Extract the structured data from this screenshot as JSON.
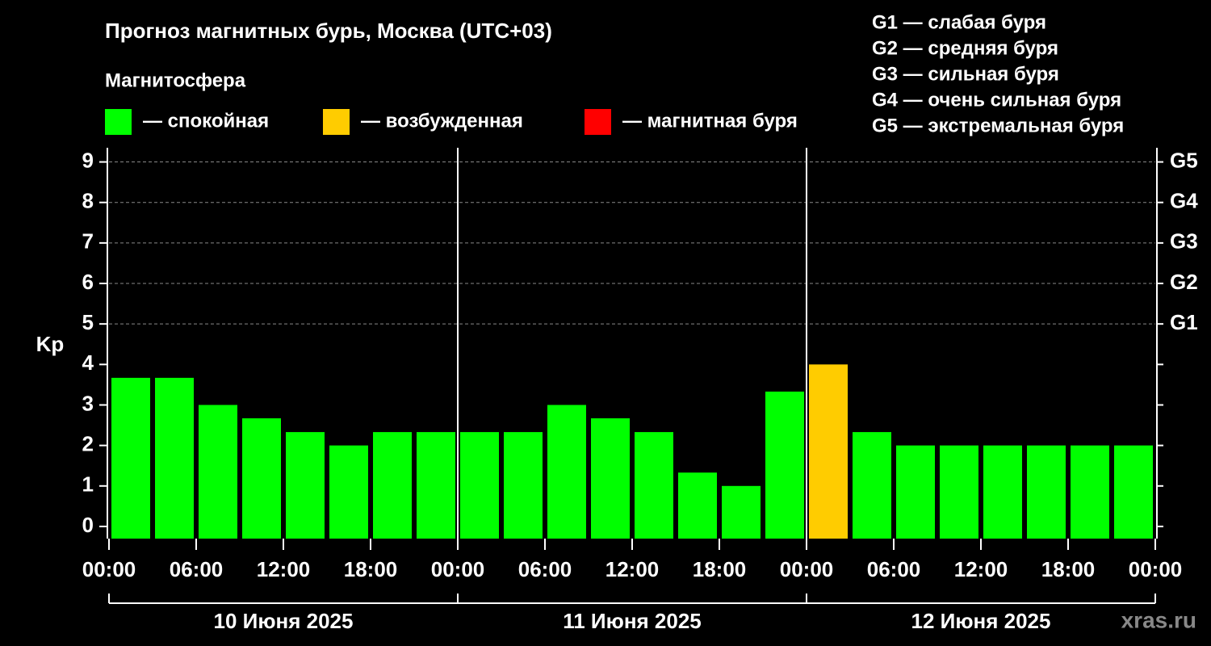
{
  "chart_data": {
    "type": "bar",
    "title": "Прогноз магнитных бурь, Москва (UTC+03)",
    "subtitle": "Магнитосфера",
    "ylabel": "Kp",
    "legend": [
      {
        "label": "— спокойная",
        "color": "#00ff00"
      },
      {
        "label": "— возбужденная",
        "color": "#ffcc00"
      },
      {
        "label": "— магнитная буря",
        "color": "#ff0000"
      }
    ],
    "storm_scale": [
      "G1 — слабая буря",
      "G2 — средняя буря",
      "G3 — сильная буря",
      "G4 — очень сильная буря",
      "G5 — экстремальная буря"
    ],
    "x": [
      0,
      3,
      6,
      9,
      12,
      15,
      18,
      21,
      24,
      27,
      30,
      33,
      36,
      39,
      42,
      45,
      48,
      51,
      54,
      57,
      60,
      63,
      66,
      69
    ],
    "series": [
      {
        "values": [
          3.67,
          3.67,
          3,
          2.67,
          2.33,
          2,
          2.33,
          2.33,
          2.33,
          2.33,
          3,
          2.67,
          2.33,
          1.33,
          1,
          3.33,
          4,
          2.33,
          2,
          2,
          2,
          2,
          2,
          2
        ],
        "colors": [
          "#00ff00",
          "#00ff00",
          "#00ff00",
          "#00ff00",
          "#00ff00",
          "#00ff00",
          "#00ff00",
          "#00ff00",
          "#00ff00",
          "#00ff00",
          "#00ff00",
          "#00ff00",
          "#00ff00",
          "#00ff00",
          "#00ff00",
          "#00ff00",
          "#ffcc00",
          "#00ff00",
          "#00ff00",
          "#00ff00",
          "#00ff00",
          "#00ff00",
          "#00ff00",
          "#00ff00"
        ]
      }
    ],
    "xlim": [
      0,
      72
    ],
    "xticks": [
      {
        "value": 0,
        "label": "00:00"
      },
      {
        "value": 6,
        "label": "06:00"
      },
      {
        "value": 12,
        "label": "12:00"
      },
      {
        "value": 18,
        "label": "18:00"
      },
      {
        "value": 24,
        "label": "00:00"
      },
      {
        "value": 30,
        "label": "06:00"
      },
      {
        "value": 36,
        "label": "12:00"
      },
      {
        "value": 42,
        "label": "18:00"
      },
      {
        "value": 48,
        "label": "00:00"
      },
      {
        "value": 54,
        "label": "06:00"
      },
      {
        "value": 60,
        "label": "12:00"
      },
      {
        "value": 66,
        "label": "18:00"
      },
      {
        "value": 72,
        "label": "00:00"
      }
    ],
    "days": [
      {
        "label": "10 Июня 2025",
        "range": [
          0,
          24
        ]
      },
      {
        "label": "11 Июня 2025",
        "range": [
          24,
          48
        ]
      },
      {
        "label": "12 Июня 2025",
        "range": [
          48,
          72
        ]
      }
    ],
    "ylim": [
      -0.3,
      9.35
    ],
    "yticks": [
      0,
      1,
      2,
      3,
      4,
      5,
      6,
      7,
      8,
      9
    ],
    "y2lim": [
      -0.3,
      9.35
    ],
    "y2ticks": [
      {
        "value": 5,
        "label": "G1"
      },
      {
        "value": 6,
        "label": "G2"
      },
      {
        "value": 7,
        "label": "G3"
      },
      {
        "value": 8,
        "label": "G4"
      },
      {
        "value": 9,
        "label": "G5"
      }
    ],
    "grid": "y2",
    "watermark": "xras.ru"
  }
}
